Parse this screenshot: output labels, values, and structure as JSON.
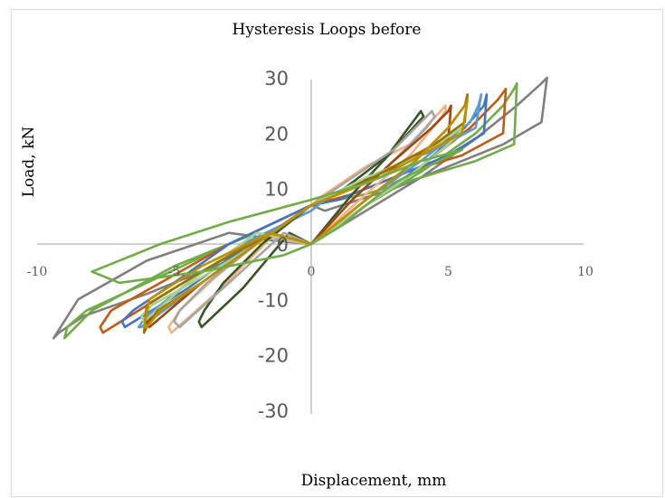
{
  "chart_data": {
    "type": "line",
    "title": "Hysteresis Loops before",
    "xlabel": "Displacement, mm",
    "ylabel": "Load, kN",
    "xlim": [
      -10,
      10
    ],
    "ylim": [
      -30,
      30
    ],
    "x_ticks": [
      "-10",
      "-5",
      "0",
      "5",
      "10"
    ],
    "y_ticks": [
      "30",
      "20",
      "10",
      "0",
      "-10",
      "-20",
      "-30"
    ],
    "grid": false,
    "legend": "none",
    "series": [
      {
        "color": "#7f7f7f",
        "x": [
          0,
          2,
          4,
          6,
          7.5,
          8.4,
          8.6,
          8.4,
          7.0,
          5.0,
          3.0,
          0.5,
          0,
          -3,
          -6,
          -8.3,
          -9.2,
          -9.4,
          -8.5,
          -6.0,
          -3.0,
          0
        ],
        "y": [
          0,
          6,
          12,
          19,
          25,
          29,
          30,
          22,
          18,
          14,
          10,
          6,
          7,
          -3,
          -9,
          -13,
          -16,
          -17,
          -10,
          -3,
          2,
          0
        ]
      },
      {
        "color": "#70ad47",
        "x": [
          0,
          2,
          4,
          6,
          7.0,
          7.4,
          7.5,
          7.4,
          6.0,
          4.0,
          2.0,
          0,
          -3,
          -6,
          -8.2,
          -8.9,
          -9.0,
          -8.0,
          -5.0,
          -2.0,
          0
        ],
        "y": [
          0,
          7,
          13,
          20,
          25,
          28,
          29,
          18,
          15,
          12,
          9,
          7,
          0,
          -7,
          -12,
          -15,
          -17,
          -12,
          -4,
          2,
          0
        ]
      },
      {
        "color": "#c55a11",
        "x": [
          0,
          2,
          4,
          5.8,
          6.8,
          7.1,
          7.0,
          5.5,
          3.5,
          1.5,
          0,
          -3,
          -5.5,
          -7.3,
          -7.7,
          -7.6,
          -5.0,
          -2.0,
          0
        ],
        "y": [
          0,
          7,
          14,
          21,
          26,
          28,
          20,
          16,
          13,
          9,
          7,
          0,
          -7,
          -12,
          -15,
          -16,
          -8,
          1,
          0
        ]
      },
      {
        "color": "#4472c4",
        "x": [
          0,
          2,
          4,
          5.6,
          6.3,
          6.4,
          6.3,
          5.0,
          3.0,
          1.0,
          0,
          -3,
          -5.0,
          -6.5,
          -6.9,
          -6.8,
          -4.5,
          -2.0,
          0
        ],
        "y": [
          0,
          7,
          14,
          21,
          25,
          27,
          20,
          16,
          12,
          8,
          7,
          0,
          -7,
          -12,
          -14,
          -15,
          -8,
          1,
          0
        ]
      },
      {
        "color": "#5b9bd5",
        "x": [
          0,
          2,
          4,
          5.8,
          6.1,
          6.2,
          6.0,
          4.5,
          2.5,
          0.5,
          0,
          -2.5,
          -4.5,
          -6.0,
          -6.3,
          -6.2,
          -4.0,
          -1.5,
          0
        ],
        "y": [
          0,
          8,
          15,
          22,
          25,
          27,
          21,
          17,
          13,
          8,
          6,
          0,
          -7,
          -13,
          -15,
          -15,
          -7,
          2,
          0
        ]
      },
      {
        "color": "#f4b183",
        "x": [
          0,
          2,
          3.6,
          4.6,
          4.9,
          4.9,
          3.6,
          2.0,
          0.5,
          0,
          -2,
          -3.5,
          -4.8,
          -5.2,
          -5.1,
          -3.5,
          -1.5,
          0
        ],
        "y": [
          0,
          9,
          16,
          22,
          24,
          25,
          18,
          14,
          9,
          7,
          0,
          -6,
          -12,
          -15,
          -16,
          -9,
          1,
          0
        ]
      },
      {
        "color": "#375623",
        "x": [
          0,
          1.5,
          3.0,
          3.9,
          4.1,
          4.0,
          2.8,
          1.2,
          0,
          -1.8,
          -3.2,
          -3.9,
          -4.1,
          -4.0,
          -2.5,
          -0.8,
          0
        ],
        "y": [
          0,
          9,
          17,
          22,
          23,
          24,
          16,
          10,
          7,
          0,
          -7,
          -12,
          -14,
          -15,
          -8,
          2,
          0
        ]
      },
      {
        "color": "#a5a5a5",
        "x": [
          0,
          1.5,
          3.0,
          4.2,
          4.5,
          4.4,
          3.0,
          1.5,
          0,
          -2,
          -3.8,
          -4.8,
          -5.0,
          -4.8,
          -3.0,
          -1.0,
          0
        ],
        "y": [
          0,
          8,
          15,
          21,
          23,
          24,
          17,
          12,
          7,
          0,
          -7,
          -12,
          -14,
          -15,
          -7,
          2,
          0
        ]
      },
      {
        "color": "#9e480e",
        "x": [
          0,
          1.5,
          3.0,
          4.4,
          5.0,
          5.1,
          5.0,
          3.5,
          1.8,
          0,
          -2,
          -4,
          -5.5,
          -6.0,
          -5.9,
          -4.0,
          -1.5,
          0
        ],
        "y": [
          0,
          8,
          15,
          21,
          24,
          25,
          19,
          15,
          11,
          7,
          0,
          -7,
          -12,
          -14,
          -15,
          -7,
          2,
          0
        ]
      },
      {
        "color": "#a9d18e",
        "x": [
          0,
          2,
          3.5,
          5.0,
          5.4,
          5.5,
          4.0,
          2.0,
          0,
          -2,
          -4,
          -5.8,
          -6.2,
          -6.1,
          -4.5,
          -2.0,
          0
        ],
        "y": [
          0,
          7,
          12,
          18,
          20,
          21,
          16,
          12,
          7,
          0,
          -6,
          -11,
          -13,
          -14,
          -7,
          2,
          0
        ]
      },
      {
        "color": "#997300",
        "x": [
          0,
          2,
          3.8,
          5.0,
          5.6,
          5.7,
          5.6,
          4.5,
          3.0,
          1.5,
          0,
          -2,
          -4,
          -5.6,
          -6.0,
          -6.1,
          -6.0,
          -4.0,
          -1.5,
          0
        ],
        "y": [
          0,
          8,
          15,
          21,
          25,
          27,
          22,
          18,
          14,
          10,
          7,
          0,
          -7,
          -12,
          -15,
          -16,
          -11,
          -5,
          2,
          0
        ]
      },
      {
        "color": "#bf8f00",
        "x": [
          0,
          2,
          3.8,
          5.0,
          5.6,
          5.7,
          5.5,
          4.0,
          2.5,
          0.5,
          0,
          -2,
          -4,
          -5.5,
          -6.0,
          -6.1,
          -5.9,
          -4.0,
          -1.5,
          0
        ],
        "y": [
          0,
          8,
          15,
          21,
          25,
          26,
          20,
          16,
          12,
          8,
          7,
          0,
          -7,
          -12,
          -15,
          -15,
          -10,
          -4,
          2,
          0
        ]
      },
      {
        "color": "#70ad47",
        "x": [
          0,
          1.0,
          2.0,
          3.0,
          5.5,
          4.0,
          2.0,
          0,
          -3,
          -5.5,
          -7.0,
          -8.0,
          -7.0,
          -4.0,
          -1.0,
          0
        ],
        "y": [
          0,
          3,
          7,
          11,
          17,
          15,
          11,
          8,
          4,
          0,
          -3,
          -5,
          -7,
          -5,
          -2,
          0
        ]
      }
    ]
  }
}
